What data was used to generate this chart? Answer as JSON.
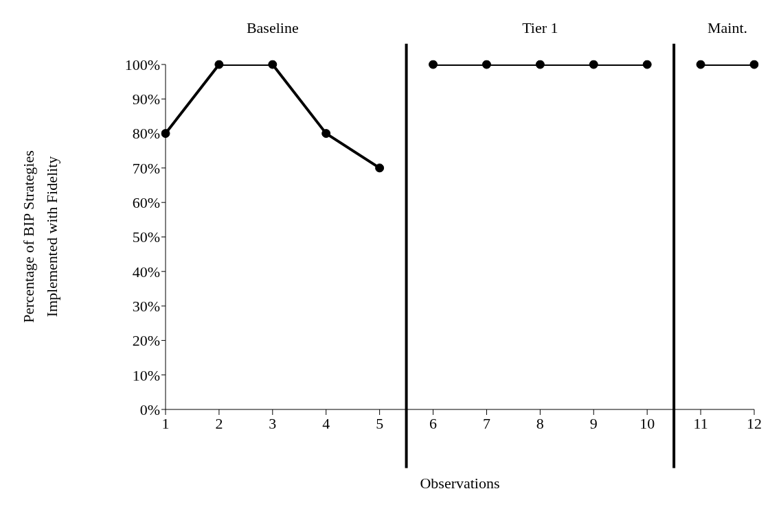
{
  "chart_data": {
    "type": "line",
    "xlabel": "Observations",
    "ylabel": "Percentage of BIP Strategies Implemented with Fidelity",
    "series": [
      {
        "color": "#000000",
        "x": [
          1,
          2,
          3,
          4,
          5
        ],
        "values": [
          80,
          100,
          100,
          80,
          70
        ]
      },
      {
        "color": "#000000",
        "x": [
          6,
          7,
          8,
          9,
          10
        ],
        "values": [
          100,
          100,
          100,
          100,
          100
        ]
      },
      {
        "color": "#000000",
        "x": [
          11,
          12
        ],
        "values": [
          100,
          100
        ]
      }
    ],
    "annotations": [
      "Baseline",
      "Tier 1",
      "Maint."
    ],
    "ref_lines": [
      {
        "axis": "x",
        "value": 5.5,
        "color": "#000000"
      },
      {
        "axis": "x",
        "value": 10.5,
        "color": "#000000"
      }
    ],
    "xlim": [
      1,
      12
    ],
    "xticks": [
      1,
      2,
      3,
      4,
      5,
      6,
      7,
      8,
      9,
      10,
      11,
      12
    ],
    "ylim": [
      0,
      100
    ],
    "yticks": [
      {
        "value": 0,
        "label": "0%"
      },
      {
        "value": 10,
        "label": "10%"
      },
      {
        "value": 20,
        "label": "20%"
      },
      {
        "value": 30,
        "label": "30%"
      },
      {
        "value": 40,
        "label": "40%"
      },
      {
        "value": 50,
        "label": "50%"
      },
      {
        "value": 60,
        "label": "60%"
      },
      {
        "value": 70,
        "label": "70%"
      },
      {
        "value": 80,
        "label": "80%"
      },
      {
        "value": 90,
        "label": "90%"
      },
      {
        "value": 100,
        "label": "100%"
      }
    ],
    "grid": false,
    "legend": false,
    "marker": "circle",
    "line_style": "solid"
  }
}
